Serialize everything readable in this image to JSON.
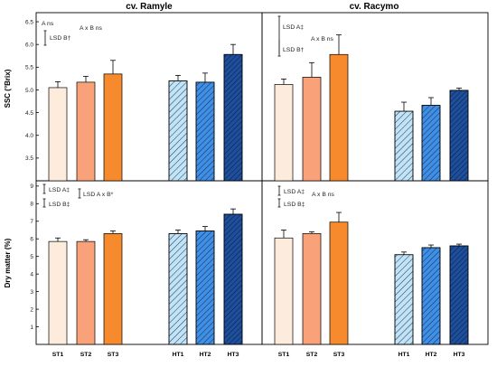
{
  "panel_titles": [
    "cv. Ramyle",
    "cv. Racymo"
  ],
  "ylabels": {
    "top": "SSC (°Brix)",
    "bottom": "Dry matter (%)"
  },
  "categories": [
    "ST1",
    "ST2",
    "ST3",
    "HT1",
    "HT2",
    "HT3"
  ],
  "colors": {
    "ST1": "#fdebdc",
    "ST2": "#f9a27a",
    "ST3": "#f68a2c",
    "HT1": "#bfe3f7",
    "HT2": "#3e8fe6",
    "HT3": "#1d4f9c",
    "hatch": "#1a1a3a",
    "axis": "#000000"
  },
  "annotations": {
    "ramyle_ssc": [
      "A ns",
      "LSD B†",
      "A x B ns"
    ],
    "racymo_ssc": [
      "LSD A‡",
      "A x B ns",
      "LSD B†"
    ],
    "ramyle_dm": [
      "LSD A‡",
      "LSD B‡",
      "LSD A x B*"
    ],
    "racymo_dm": [
      "LSD A‡",
      "A x B ns",
      "LSD B‡"
    ]
  },
  "chart_data": [
    {
      "type": "bar",
      "panel": "cv. Ramyle",
      "title": "cv. Ramyle",
      "ylabel": "SSC (°Brix)",
      "ylim": [
        3.0,
        6.7
      ],
      "yticks": [
        "3.5",
        "4.0",
        "4.5",
        "5.0",
        "5.5",
        "6.0",
        "6.5"
      ],
      "categories": [
        "ST1",
        "ST2",
        "ST3",
        "HT1",
        "HT2",
        "HT3"
      ],
      "values": [
        5.05,
        5.17,
        5.35,
        5.2,
        5.17,
        5.78
      ],
      "errors": [
        0.13,
        0.13,
        0.3,
        0.12,
        0.2,
        0.22
      ]
    },
    {
      "type": "bar",
      "panel": "cv. Racymo",
      "title": "cv. Racymo",
      "ylabel": "SSC (°Brix)",
      "ylim": [
        3.0,
        6.7
      ],
      "categories": [
        "ST1",
        "ST2",
        "ST3",
        "HT1",
        "HT2",
        "HT3"
      ],
      "values": [
        5.12,
        5.28,
        5.78,
        4.53,
        4.66,
        4.99
      ],
      "errors": [
        0.12,
        0.32,
        0.43,
        0.2,
        0.17,
        0.05
      ]
    },
    {
      "type": "bar",
      "panel": "cv. Ramyle",
      "ylabel": "Dry matter (%)",
      "ylim": [
        0,
        9.3
      ],
      "yticks": [
        "1",
        "2",
        "3",
        "4",
        "5",
        "6",
        "7",
        "8",
        "9"
      ],
      "categories": [
        "ST1",
        "ST2",
        "ST3",
        "HT1",
        "HT2",
        "HT3"
      ],
      "values": [
        5.85,
        5.85,
        6.3,
        6.3,
        6.45,
        7.4
      ],
      "errors": [
        0.2,
        0.1,
        0.15,
        0.2,
        0.25,
        0.3
      ]
    },
    {
      "type": "bar",
      "panel": "cv. Racymo",
      "ylabel": "Dry matter (%)",
      "ylim": [
        0,
        9.3
      ],
      "categories": [
        "ST1",
        "ST2",
        "ST3",
        "HT1",
        "HT2",
        "HT3"
      ],
      "values": [
        6.05,
        6.3,
        6.95,
        5.1,
        5.5,
        5.6
      ],
      "errors": [
        0.45,
        0.1,
        0.55,
        0.15,
        0.15,
        0.1
      ]
    }
  ]
}
